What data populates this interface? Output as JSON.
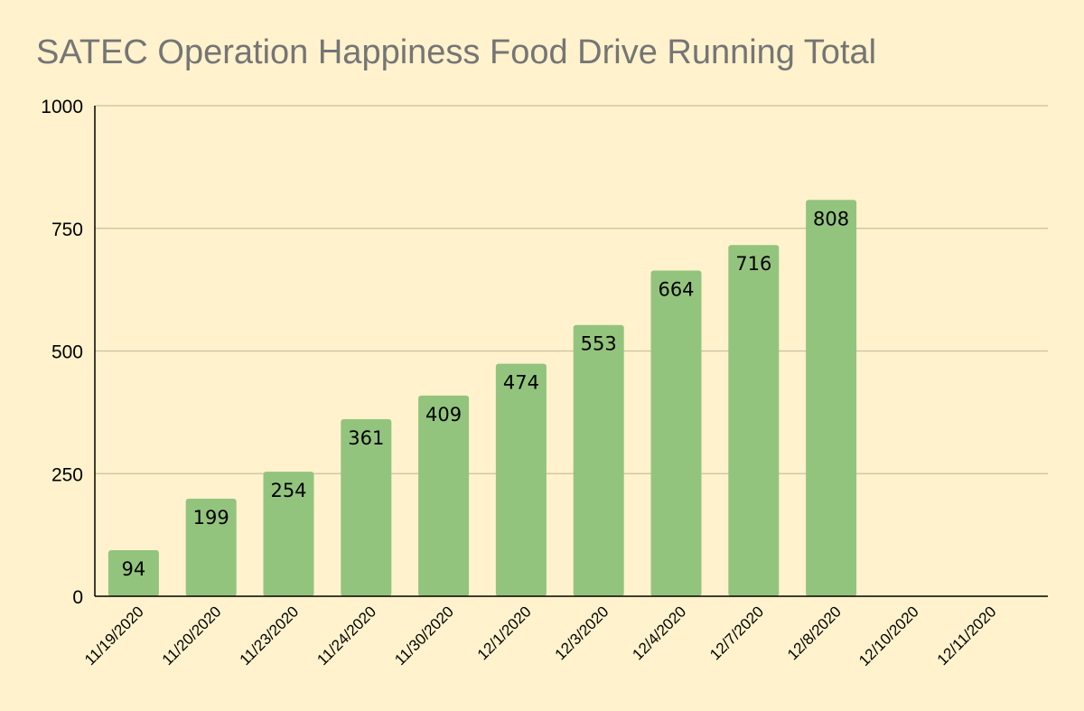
{
  "colors": {
    "background": "#fff2cc",
    "bar": "#93c47d",
    "grid": "#c9bfa3",
    "axis": "#000000",
    "title": "#757575",
    "text": "#000000"
  },
  "chart_data": {
    "type": "bar",
    "title": "SATEC Operation Happiness Food Drive Running Total",
    "xlabel": "",
    "ylabel": "",
    "categories": [
      "11/19/2020",
      "11/20/2020",
      "11/23/2020",
      "11/24/2020",
      "11/30/2020",
      "12/1/2020",
      "12/3/2020",
      "12/4/2020",
      "12/7/2020",
      "12/8/2020",
      "12/10/2020",
      "12/11/2020"
    ],
    "values": [
      94,
      199,
      254,
      361,
      409,
      474,
      553,
      664,
      716,
      808,
      null,
      null
    ],
    "ylim": [
      0,
      1000
    ],
    "yticks": [
      0,
      250,
      500,
      750,
      1000
    ],
    "grid": true,
    "data_labels": true,
    "legend": "none"
  }
}
